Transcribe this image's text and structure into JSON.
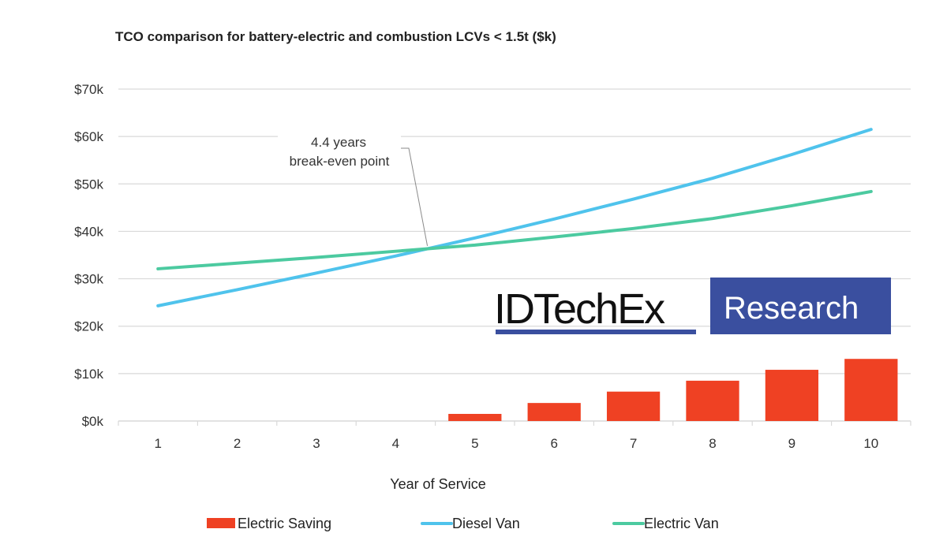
{
  "chart_data": {
    "type": "bar+line",
    "title": "TCO comparison for battery-electric and combustion LCVs < 1.5t ($k)",
    "xlabel": "Year of Service",
    "ylabel": "",
    "categories": [
      "1",
      "2",
      "3",
      "4",
      "5",
      "6",
      "7",
      "8",
      "9",
      "10"
    ],
    "ylim": [
      0,
      70
    ],
    "yticks": [
      0,
      10,
      20,
      30,
      40,
      50,
      60,
      70
    ],
    "ytick_labels": [
      "$0k",
      "$10k",
      "$20k",
      "$30k",
      "$40k",
      "$50k",
      "$60k",
      "$70k"
    ],
    "grid": true,
    "series": [
      {
        "name": "Electric Saving",
        "type": "bar",
        "color": "#ef4123",
        "values": [
          0,
          0,
          0,
          0,
          1.5,
          3.8,
          6.2,
          8.5,
          10.8,
          13.1
        ]
      },
      {
        "name": "Diesel Van",
        "type": "line",
        "color": "#4fc3ec",
        "values": [
          24.3,
          27.7,
          31.2,
          34.8,
          38.6,
          42.6,
          46.8,
          51.2,
          56.2,
          61.5
        ]
      },
      {
        "name": "Electric Van",
        "type": "line",
        "color": "#4ccaa0",
        "values": [
          32.1,
          33.3,
          34.5,
          35.8,
          37.1,
          38.8,
          40.6,
          42.7,
          45.4,
          48.4
        ]
      }
    ],
    "legend_position": "bottom",
    "annotation": {
      "lines": [
        "4.4 years",
        "break-even point"
      ],
      "x": 4.4,
      "y": 36.6
    }
  },
  "logo": {
    "left": "IDTechEx",
    "right": "Research",
    "color": "#3a4f9f"
  }
}
